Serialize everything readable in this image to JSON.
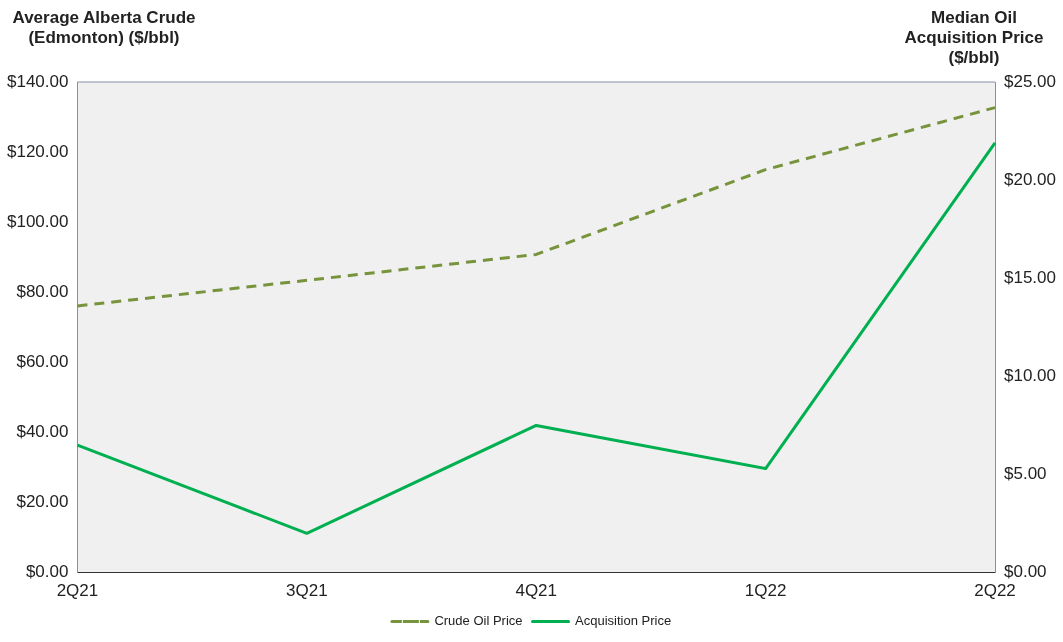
{
  "chart_data": {
    "type": "line",
    "ylabel": "Average Alberta Crude (Edmonton) ($/bbl)",
    "y2label": "Median Oil Acquisition Price ($/bbl)",
    "categories": [
      "2Q21",
      "3Q21",
      "4Q21",
      "1Q22",
      "2Q22"
    ],
    "series": [
      {
        "name": "Crude Oil Price",
        "color": "#77933c",
        "line_style": "dashed",
        "values": [
          76.1,
          83.4,
          90.8,
          115.0,
          132.7
        ]
      },
      {
        "name": "Acquisition Price",
        "color": "#00b050",
        "line_style": "solid",
        "axis": "y2",
        "values": [
          6.5,
          2.0,
          7.5,
          5.3,
          21.9
        ]
      }
    ],
    "ylim": [
      0,
      140
    ],
    "yticks": [
      {
        "value": 0,
        "label": "$0.00"
      },
      {
        "value": 20,
        "label": "$20.00"
      },
      {
        "value": 40,
        "label": "$40.00"
      },
      {
        "value": 60,
        "label": "$60.00"
      },
      {
        "value": 80,
        "label": "$80.00"
      },
      {
        "value": 100,
        "label": "$100.00"
      },
      {
        "value": 120,
        "label": "$120.00"
      },
      {
        "value": 140,
        "label": "$140.00"
      }
    ],
    "y2lim": [
      0,
      25
    ],
    "y2ticks": [
      {
        "value": 0,
        "label": "$0.00"
      },
      {
        "value": 5,
        "label": "$5.00"
      },
      {
        "value": 10,
        "label": "$10.00"
      },
      {
        "value": 15,
        "label": "$15.00"
      },
      {
        "value": 20,
        "label": "$20.00"
      },
      {
        "value": 25,
        "label": "$25.00"
      }
    ],
    "grid": false,
    "legend": "bottom",
    "marker": "none"
  }
}
